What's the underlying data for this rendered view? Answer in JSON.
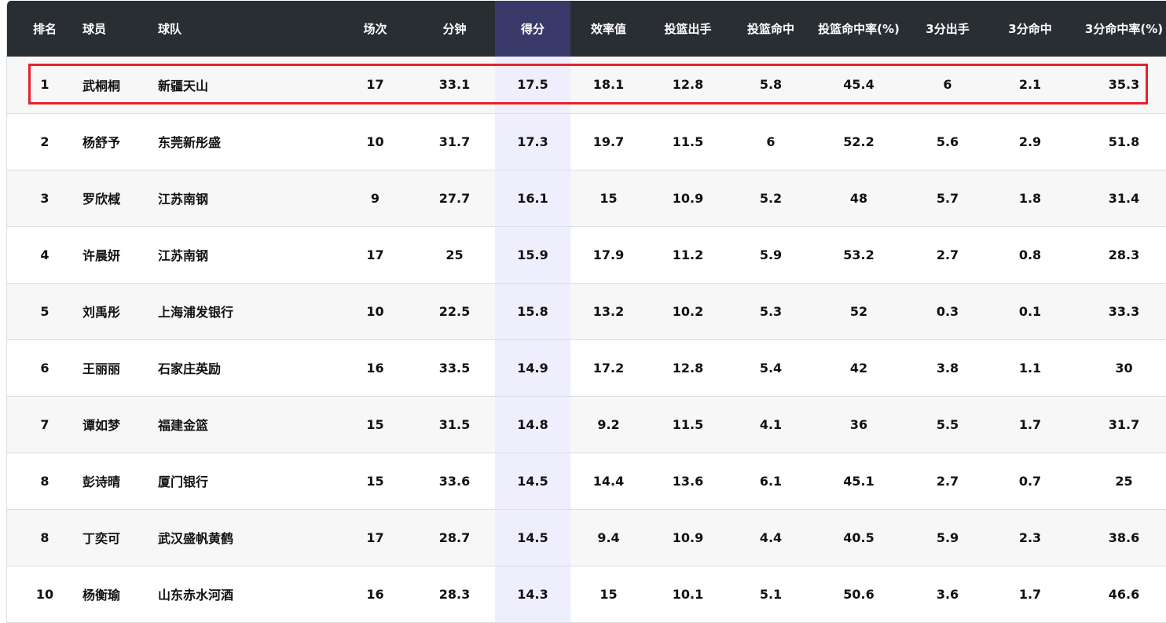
{
  "headers": [
    "排名",
    "球员",
    "球队",
    "场次",
    "分钟",
    "得分",
    "效率值",
    "投篮出手",
    "投篮命中",
    "投篮命中率(%)",
    "3分出手",
    "3分命中",
    "3分命中率(%)"
  ],
  "highlight_color": "#e8202c",
  "sorted_column": "得分",
  "rows": [
    [
      "1",
      "武桐桐",
      "新疆天山",
      "17",
      "33.1",
      "17.5",
      "18.1",
      "12.8",
      "5.8",
      "45.4",
      "6",
      "2.1",
      "35.3"
    ],
    [
      "2",
      "杨舒予",
      "东莞新彤盛",
      "10",
      "31.7",
      "17.3",
      "19.7",
      "11.5",
      "6",
      "52.2",
      "5.6",
      "2.9",
      "51.8"
    ],
    [
      "3",
      "罗欣棫",
      "江苏南钢",
      "9",
      "27.7",
      "16.1",
      "15",
      "10.9",
      "5.2",
      "48",
      "5.7",
      "1.8",
      "31.4"
    ],
    [
      "4",
      "许晨妍",
      "江苏南钢",
      "17",
      "25",
      "15.9",
      "17.9",
      "11.2",
      "5.9",
      "53.2",
      "2.7",
      "0.8",
      "28.3"
    ],
    [
      "5",
      "刘禹彤",
      "上海浦发银行",
      "10",
      "22.5",
      "15.8",
      "13.2",
      "10.2",
      "5.3",
      "52",
      "0.3",
      "0.1",
      "33.3"
    ],
    [
      "6",
      "王丽丽",
      "石家庄英励",
      "16",
      "33.5",
      "14.9",
      "17.2",
      "12.8",
      "5.4",
      "42",
      "3.8",
      "1.1",
      "30"
    ],
    [
      "7",
      "谭如梦",
      "福建金篮",
      "15",
      "31.5",
      "14.8",
      "9.2",
      "11.5",
      "4.1",
      "36",
      "5.5",
      "1.7",
      "31.7"
    ],
    [
      "8",
      "彭诗晴",
      "厦门银行",
      "15",
      "33.6",
      "14.5",
      "14.4",
      "13.6",
      "6.1",
      "45.1",
      "2.7",
      "0.7",
      "25"
    ],
    [
      "8",
      "丁奕可",
      "武汉盛帆黄鹤",
      "17",
      "28.7",
      "14.5",
      "9.4",
      "10.9",
      "4.4",
      "40.5",
      "5.9",
      "2.3",
      "38.6"
    ],
    [
      "10",
      "杨衡瑜",
      "山东赤水河酒",
      "16",
      "28.3",
      "14.3",
      "15",
      "10.1",
      "5.1",
      "50.6",
      "3.6",
      "1.7",
      "46.6"
    ]
  ]
}
